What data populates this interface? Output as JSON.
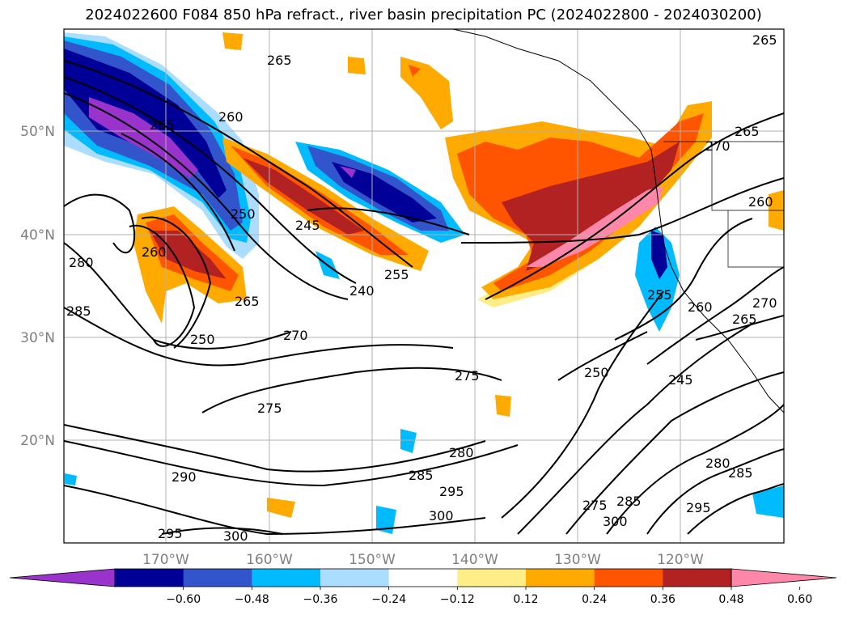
{
  "title": "2024022600 F084 850 hPa refract., river basin precipitation PC (2024022800 - 2024030200)",
  "map": {
    "lon_labels": [
      "170°W",
      "160°W",
      "150°W",
      "140°W",
      "130°W",
      "120°W"
    ],
    "lat_labels": [
      "50°N",
      "40°N",
      "30°N",
      "20°N"
    ],
    "contour_labels": [
      "265",
      "265",
      "260",
      "250",
      "245",
      "260",
      "280",
      "285",
      "265",
      "250",
      "270",
      "240",
      "255",
      "275",
      "275",
      "280",
      "285",
      "295",
      "300",
      "300",
      "290",
      "295",
      "250",
      "245",
      "255",
      "260",
      "265",
      "270",
      "275",
      "285",
      "300",
      "295",
      "280",
      "285",
      "265",
      "270",
      "260",
      "265"
    ]
  },
  "colorbar": {
    "colors": [
      "#9933cc",
      "#000099",
      "#3355cc",
      "#00bbff",
      "#aaddff",
      "#ffffff",
      "#ffee88",
      "#ffaa00",
      "#ff5500",
      "#b22222",
      "#ff88aa"
    ],
    "tick_labels": [
      "−0.60",
      "−0.48",
      "−0.36",
      "−0.24",
      "−0.12",
      "0.12",
      "0.24",
      "0.36",
      "0.48",
      "0.60"
    ]
  }
}
